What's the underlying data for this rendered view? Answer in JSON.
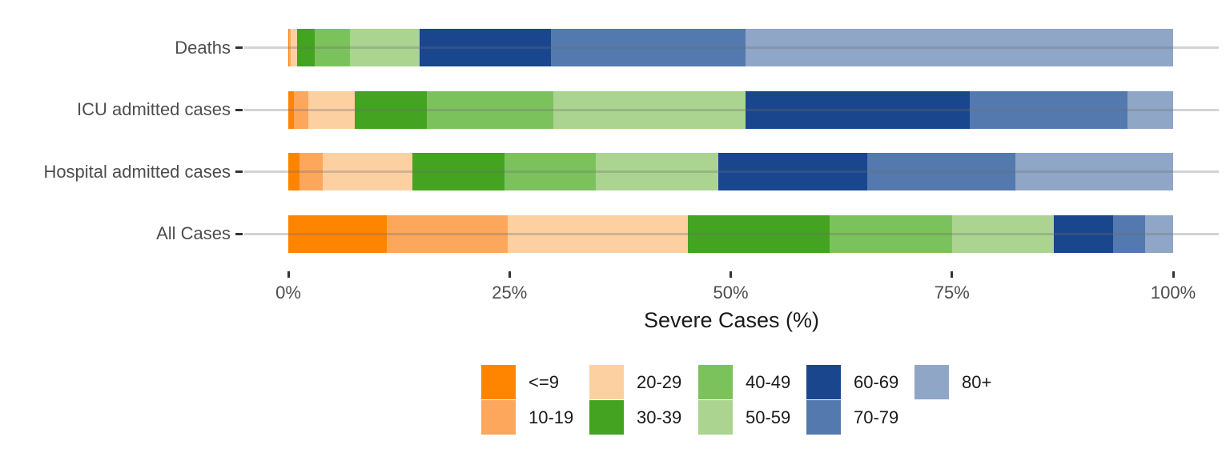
{
  "chart_data": {
    "type": "bar",
    "orientation": "horizontal",
    "stacked": true,
    "units": "percent",
    "title": "",
    "xlabel": "Severe Cases (%)",
    "ylabel": "",
    "xlim": [
      0,
      100
    ],
    "x_ticks": [
      "0%",
      "25%",
      "50%",
      "75%",
      "100%"
    ],
    "x_tick_values": [
      0,
      25,
      50,
      75,
      100
    ],
    "grid": "horizontal row lines only",
    "legend_position": "bottom",
    "legend_rows": 2,
    "categories": [
      "Deaths",
      "ICU admitted cases",
      "Hospital admitted cases",
      "All Cases"
    ],
    "series": [
      {
        "name": "<=9",
        "color": "#FF8400",
        "values": [
          0.1,
          0.6,
          1.3,
          11.1
        ]
      },
      {
        "name": "10-19",
        "color": "#FDA75C",
        "values": [
          0.2,
          1.7,
          2.6,
          13.7
        ]
      },
      {
        "name": "20-29",
        "color": "#FDD0A2",
        "values": [
          0.7,
          5.2,
          10.1,
          20.4
        ]
      },
      {
        "name": "30-39",
        "color": "#44A320",
        "values": [
          2.0,
          8.2,
          10.4,
          16.0
        ]
      },
      {
        "name": "40-49",
        "color": "#7CC25C",
        "values": [
          4.0,
          14.3,
          10.4,
          13.8
        ]
      },
      {
        "name": "50-59",
        "color": "#AAD48F",
        "values": [
          7.8,
          21.7,
          13.8,
          11.5
        ]
      },
      {
        "name": "60-69",
        "color": "#1A468E",
        "values": [
          14.9,
          25.3,
          16.8,
          6.7
        ]
      },
      {
        "name": "70-79",
        "color": "#5379AE",
        "values": [
          22.0,
          17.8,
          16.8,
          3.6
        ]
      },
      {
        "name": "80+",
        "color": "#90A6C7",
        "values": [
          48.3,
          5.2,
          17.8,
          3.2
        ]
      }
    ],
    "tick_color": "#333333",
    "axis_text_color": "#4d4d4d",
    "axis_title_color": "#1a1a1a"
  }
}
